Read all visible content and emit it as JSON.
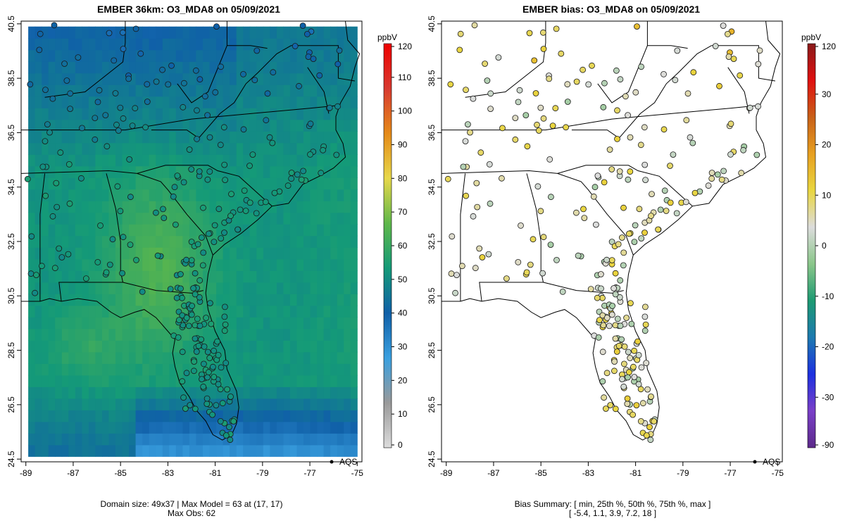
{
  "left_panel": {
    "title": "EMBER 36km: O3_MDA8 on 05/09/2021",
    "footer_line1": "Domain size: 49x37 | Max Model = 63 at (17, 17)",
    "footer_line2": "Max Obs: 62",
    "legend_label": "AQS",
    "colorbar_unit": "ppbV",
    "colorbar_ticks": [
      "120",
      "110",
      "100",
      "90",
      "80",
      "70",
      "60",
      "50",
      "40",
      "30",
      "20",
      "10",
      "0"
    ],
    "colormap": [
      "#dddddd",
      "#9a9a9a",
      "#3aa0e0",
      "#1060a8",
      "#149a78",
      "#5fb84a",
      "#e7d84a",
      "#e58a18",
      "#d83a30",
      "#ee0000"
    ]
  },
  "right_panel": {
    "title": "EMBER bias: O3_MDA8 on 05/09/2021",
    "footer_line1": "Bias Summary: [ min, 25th %, 50th %, 75th %, max ]",
    "footer_line2": "[ -5.4,   1.1,   3.9,   7.2,   18 ]",
    "legend_label": "AQS",
    "colorbar_unit": "ppbV",
    "colorbar_ticks": [
      "120",
      "30",
      "20",
      "10",
      "0",
      "-10",
      "-20",
      "-30",
      "-90"
    ],
    "colormap": [
      "#5c2a8a",
      "#7a3fc8",
      "#1c30e0",
      "#1c7ab0",
      "#1c9a72",
      "#8ac68a",
      "#dcdcdc",
      "#e9d640",
      "#e7a020",
      "#c86018",
      "#e01010",
      "#8a1a1a"
    ]
  },
  "axes": {
    "x_ticks": [
      "-89",
      "-87",
      "-85",
      "-83",
      "-81",
      "-79",
      "-77",
      "-75"
    ],
    "y_ticks": [
      "40.5",
      "38.5",
      "36.5",
      "34.5",
      "32.5",
      "30.5",
      "28.5",
      "26.5",
      "24.5"
    ],
    "xlim": [
      -89.2,
      -74.8
    ],
    "ylim": [
      24.4,
      40.6
    ]
  },
  "map_data": {
    "projection": "lon-lat",
    "coast": [
      [
        -75.5,
        40.6
      ],
      [
        -75.4,
        39.9
      ],
      [
        -74.9,
        39.4
      ],
      [
        -75.1,
        38.9
      ],
      [
        -75.3,
        38.2
      ],
      [
        -75.7,
        37.6
      ],
      [
        -75.9,
        37.1
      ],
      [
        -75.9,
        36.6
      ],
      [
        -75.6,
        36.1
      ],
      [
        -75.5,
        35.6
      ],
      [
        -76.0,
        35.2
      ],
      [
        -76.6,
        34.9
      ],
      [
        -77.3,
        34.6
      ],
      [
        -77.9,
        33.9
      ],
      [
        -78.6,
        33.8
      ],
      [
        -79.2,
        33.3
      ],
      [
        -79.9,
        32.8
      ],
      [
        -80.6,
        32.4
      ],
      [
        -81.1,
        32.0
      ],
      [
        -81.3,
        31.3
      ],
      [
        -81.4,
        30.6
      ],
      [
        -81.3,
        30.0
      ],
      [
        -81.0,
        29.2
      ],
      [
        -80.6,
        28.5
      ],
      [
        -80.5,
        27.8
      ],
      [
        -80.1,
        27.0
      ],
      [
        -80.0,
        26.4
      ],
      [
        -80.1,
        25.8
      ],
      [
        -80.3,
        25.4
      ],
      [
        -80.7,
        25.2
      ],
      [
        -81.1,
        25.4
      ],
      [
        -81.4,
        25.9
      ],
      [
        -81.8,
        26.3
      ],
      [
        -82.1,
        26.8
      ],
      [
        -82.5,
        27.3
      ],
      [
        -82.7,
        27.9
      ],
      [
        -82.8,
        28.4
      ],
      [
        -82.7,
        28.9
      ],
      [
        -83.0,
        29.2
      ],
      [
        -83.5,
        29.7
      ],
      [
        -84.0,
        30.0
      ],
      [
        -84.4,
        29.9
      ],
      [
        -85.0,
        29.7
      ],
      [
        -85.4,
        29.9
      ],
      [
        -86.0,
        30.3
      ],
      [
        -86.8,
        30.4
      ],
      [
        -87.5,
        30.3
      ],
      [
        -88.0,
        30.4
      ],
      [
        -88.4,
        30.3
      ],
      [
        -89.0,
        30.3
      ],
      [
        -89.2,
        30.3
      ]
    ],
    "borders": [
      [
        [
          -89.2,
          36.6
        ],
        [
          -84.8,
          36.6
        ],
        [
          -82.0,
          37.0
        ],
        [
          -79.5,
          37.2
        ],
        [
          -77.0,
          37.4
        ],
        [
          -75.8,
          37.5
        ]
      ],
      [
        [
          -89.2,
          35.0
        ],
        [
          -85.5,
          35.1
        ],
        [
          -84.3,
          35.0
        ],
        [
          -83.1,
          35.3
        ],
        [
          -81.3,
          35.3
        ],
        [
          -80.9,
          35.1
        ],
        [
          -80.0,
          34.9
        ],
        [
          -78.6,
          33.8
        ]
      ],
      [
        [
          -84.3,
          35.0
        ],
        [
          -83.3,
          34.7
        ],
        [
          -83.0,
          34.4
        ],
        [
          -82.2,
          33.5
        ],
        [
          -81.4,
          32.7
        ],
        [
          -81.1,
          32.0
        ]
      ],
      [
        [
          -88.2,
          35.0
        ],
        [
          -88.4,
          33.5
        ],
        [
          -88.4,
          31.9
        ],
        [
          -88.4,
          30.3
        ]
      ],
      [
        [
          -85.6,
          35.0
        ],
        [
          -85.2,
          33.7
        ],
        [
          -85.0,
          32.5
        ],
        [
          -85.0,
          31.4
        ],
        [
          -84.9,
          31.0
        ],
        [
          -87.6,
          31.0
        ],
        [
          -87.5,
          30.3
        ]
      ],
      [
        [
          -84.9,
          31.0
        ],
        [
          -83.5,
          30.7
        ],
        [
          -82.0,
          30.6
        ],
        [
          -81.5,
          30.7
        ]
      ],
      [
        [
          -83.7,
          36.6
        ],
        [
          -82.2,
          36.6
        ],
        [
          -81.7,
          36.3
        ],
        [
          -80.8,
          37.2
        ],
        [
          -80.2,
          37.6
        ],
        [
          -79.7,
          38.3
        ],
        [
          -79.2,
          38.7
        ],
        [
          -78.4,
          39.4
        ],
        [
          -77.8,
          39.7
        ]
      ],
      [
        [
          -77.8,
          39.7
        ],
        [
          -76.9,
          39.7
        ],
        [
          -75.8,
          39.7
        ],
        [
          -75.8,
          38.5
        ],
        [
          -75.1,
          38.4
        ]
      ],
      [
        [
          -77.1,
          38.9
        ],
        [
          -76.4,
          38.0
        ],
        [
          -76.2,
          37.2
        ]
      ],
      [
        [
          -82.6,
          38.3
        ],
        [
          -82.0,
          37.6
        ],
        [
          -81.3,
          38.0
        ],
        [
          -80.5,
          39.7
        ],
        [
          -79.5,
          39.7
        ],
        [
          -78.8,
          39.6
        ]
      ],
      [
        [
          -88.2,
          37.8
        ],
        [
          -86.5,
          38.0
        ],
        [
          -84.9,
          39.1
        ],
        [
          -84.8,
          39.8
        ],
        [
          -84.8,
          40.6
        ]
      ],
      [
        [
          -80.5,
          40.6
        ],
        [
          -80.5,
          39.7
        ]
      ]
    ],
    "obs_count": 300,
    "max_model": 63,
    "max_obs": 62
  },
  "bias_stats": {
    "min": -5.4,
    "p25": 1.1,
    "p50": 3.9,
    "p75": 7.2,
    "max": 18
  }
}
